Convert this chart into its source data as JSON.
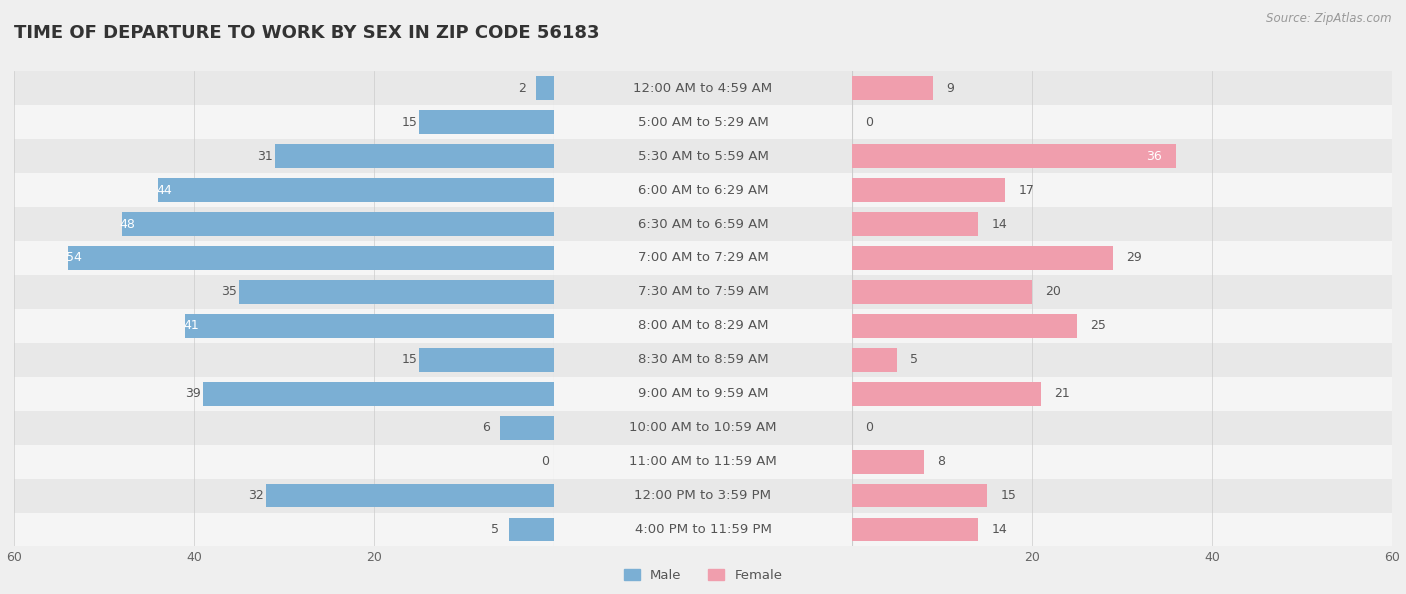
{
  "title": "TIME OF DEPARTURE TO WORK BY SEX IN ZIP CODE 56183",
  "source": "Source: ZipAtlas.com",
  "categories": [
    "12:00 AM to 4:59 AM",
    "5:00 AM to 5:29 AM",
    "5:30 AM to 5:59 AM",
    "6:00 AM to 6:29 AM",
    "6:30 AM to 6:59 AM",
    "7:00 AM to 7:29 AM",
    "7:30 AM to 7:59 AM",
    "8:00 AM to 8:29 AM",
    "8:30 AM to 8:59 AM",
    "9:00 AM to 9:59 AM",
    "10:00 AM to 10:59 AM",
    "11:00 AM to 11:59 AM",
    "12:00 PM to 3:59 PM",
    "4:00 PM to 11:59 PM"
  ],
  "male_values": [
    2,
    15,
    31,
    44,
    48,
    54,
    35,
    41,
    15,
    39,
    6,
    0,
    32,
    5
  ],
  "female_values": [
    9,
    0,
    36,
    17,
    14,
    29,
    20,
    25,
    5,
    21,
    0,
    8,
    15,
    14
  ],
  "male_color": "#7bafd4",
  "female_color": "#f09ead",
  "background_color": "#efefef",
  "row_colors": [
    "#e8e8e8",
    "#f5f5f5"
  ],
  "xlim": 60,
  "title_fontsize": 13,
  "label_fontsize": 9.5,
  "tick_fontsize": 9,
  "value_fontsize": 9
}
